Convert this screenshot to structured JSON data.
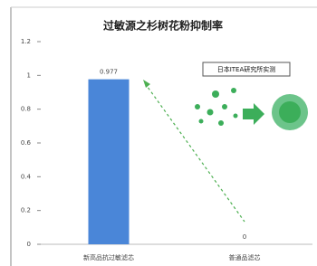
{
  "chart_data": {
    "type": "bar",
    "title": "过敏源之杉树花粉抑制率",
    "categories": [
      "新高品抗过敏滤芯",
      "普通品滤芯"
    ],
    "values": [
      0.977,
      0
    ],
    "color": "#4a86d8",
    "ylim": [
      0,
      1.2
    ],
    "yticks": [
      0,
      0.2,
      0.4,
      0.6,
      0.8,
      1,
      1.2
    ],
    "grid": false,
    "annotation": "日本ITEA研究所实测"
  }
}
